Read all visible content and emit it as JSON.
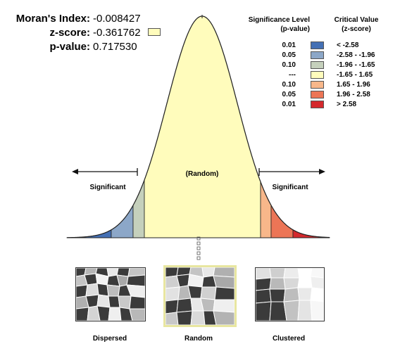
{
  "stats": {
    "index_label": "Moran's Index:",
    "index_value": "-0.008427",
    "z_label": "z-score:",
    "z_value": "-0.361762",
    "p_label": "p-value:",
    "p_value": "0.717530"
  },
  "legend": {
    "level_header": "Significance Level\n(p-value)",
    "value_header": "Critical Value\n(z-score)",
    "rows": [
      {
        "level": "0.01",
        "range": "< -2.58",
        "color": "#4470b4"
      },
      {
        "level": "0.05",
        "range": "-2.58 - -1.96",
        "color": "#8ca7c8"
      },
      {
        "level": "0.10",
        "range": "-1.96 - -1.65",
        "color": "#c5d0bc"
      },
      {
        "level": "---",
        "range": "-1.65 - 1.65",
        "color": "#fffcbc"
      },
      {
        "level": "0.10",
        "range": "1.65 - 1.96",
        "color": "#f8b78a"
      },
      {
        "level": "0.05",
        "range": "1.96 - 2.58",
        "color": "#ec7556"
      },
      {
        "level": "0.01",
        "range": "> 2.58",
        "color": "#d4292d"
      }
    ]
  },
  "curve_labels": {
    "random": "(Random)",
    "significant_left": "Significant",
    "significant_right": "Significant"
  },
  "maps": [
    {
      "caption": "Dispersed"
    },
    {
      "caption": "Random"
    },
    {
      "caption": "Clustered"
    }
  ]
}
